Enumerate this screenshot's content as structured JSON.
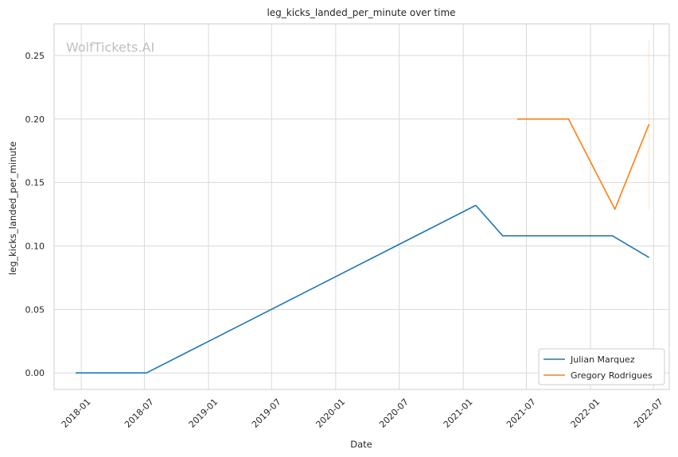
{
  "chart_data": {
    "type": "line",
    "title": "leg_kicks_landed_per_minute over time",
    "xlabel": "Date",
    "ylabel": "leg_kicks_landed_per_minute",
    "watermark": "WolfTickets.AI",
    "x_axis_type": "date",
    "xlim": [
      "2017-10-15",
      "2022-08-15"
    ],
    "ylim": [
      -0.013,
      0.275
    ],
    "x_ticks": [
      "2018-01",
      "2018-07",
      "2019-01",
      "2019-07",
      "2020-01",
      "2020-07",
      "2021-01",
      "2021-07",
      "2022-01",
      "2022-07"
    ],
    "y_ticks": [
      "0.00",
      "0.05",
      "0.10",
      "0.15",
      "0.20",
      "0.25"
    ],
    "grid": true,
    "legend_position": "bottom-right",
    "series": [
      {
        "name": "Julian Marquez",
        "color": "#1f77b4",
        "points": [
          {
            "x": "2017-12-16",
            "y": 0.0
          },
          {
            "x": "2018-07-07",
            "y": 0.0
          },
          {
            "x": "2021-02-06",
            "y": 0.132
          },
          {
            "x": "2021-04-24",
            "y": 0.108
          },
          {
            "x": "2022-03-05",
            "y": 0.108
          },
          {
            "x": "2022-06-18",
            "y": 0.091
          }
        ]
      },
      {
        "name": "Gregory Rodrigues",
        "color": "#ff7f0e",
        "points": [
          {
            "x": "2021-06-05",
            "y": 0.2
          },
          {
            "x": "2021-10-30",
            "y": 0.2
          },
          {
            "x": "2022-03-12",
            "y": 0.129
          },
          {
            "x": "2022-06-18",
            "y": 0.196
          }
        ],
        "band": {
          "x": "2022-06-18",
          "low": 0.129,
          "high": 0.262
        }
      }
    ]
  }
}
